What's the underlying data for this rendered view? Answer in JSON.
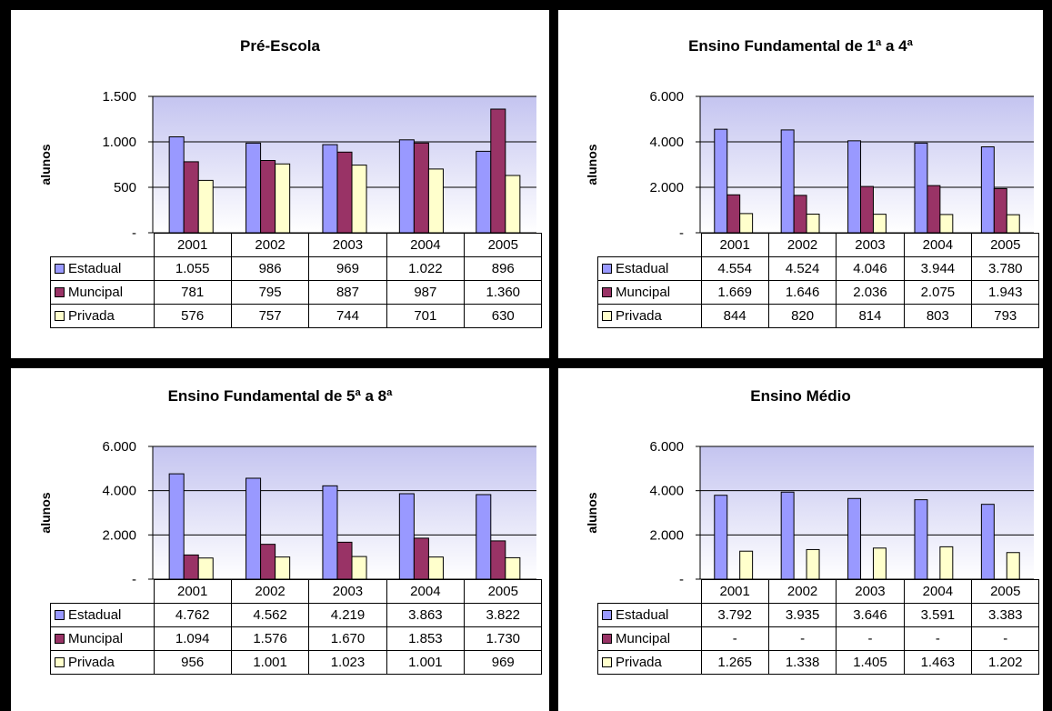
{
  "chart_data": [
    {
      "type": "bar",
      "title": "Pré-Escola",
      "ylabel": "alunos",
      "ylim": [
        0,
        1500
      ],
      "y_ticks": [
        "1.500",
        "1.000",
        "500",
        "-"
      ],
      "y_tick_values": [
        1500,
        1000,
        500,
        0
      ],
      "categories": [
        "2001",
        "2002",
        "2003",
        "2004",
        "2005"
      ],
      "series": [
        {
          "name": "Estadual",
          "values": [
            1055,
            986,
            969,
            1022,
            896
          ],
          "labels": [
            "1.055",
            "986",
            "969",
            "1.022",
            "896"
          ],
          "color": "#9999ff"
        },
        {
          "name": "Muncipal",
          "values": [
            781,
            795,
            887,
            987,
            1360
          ],
          "labels": [
            "781",
            "795",
            "887",
            "987",
            "1.360"
          ],
          "color": "#993366"
        },
        {
          "name": "Privada",
          "values": [
            576,
            757,
            744,
            701,
            630
          ],
          "labels": [
            "576",
            "757",
            "744",
            "701",
            "630"
          ],
          "color": "#ffffcc"
        }
      ]
    },
    {
      "type": "bar",
      "title": "Ensino Fundamental de 1ª a 4ª",
      "ylabel": "alunos",
      "ylim": [
        0,
        6000
      ],
      "y_ticks": [
        "6.000",
        "4.000",
        "2.000",
        "-"
      ],
      "y_tick_values": [
        6000,
        4000,
        2000,
        0
      ],
      "categories": [
        "2001",
        "2002",
        "2003",
        "2004",
        "2005"
      ],
      "series": [
        {
          "name": "Estadual",
          "values": [
            4554,
            4524,
            4046,
            3944,
            3780
          ],
          "labels": [
            "4.554",
            "4.524",
            "4.046",
            "3.944",
            "3.780"
          ],
          "color": "#9999ff"
        },
        {
          "name": "Muncipal",
          "values": [
            1669,
            1646,
            2036,
            2075,
            1943
          ],
          "labels": [
            "1.669",
            "1.646",
            "2.036",
            "2.075",
            "1.943"
          ],
          "color": "#993366"
        },
        {
          "name": "Privada",
          "values": [
            844,
            820,
            814,
            803,
            793
          ],
          "labels": [
            "844",
            "820",
            "814",
            "803",
            "793"
          ],
          "color": "#ffffcc"
        }
      ]
    },
    {
      "type": "bar",
      "title": "Ensino Fundamental de 5ª a 8ª",
      "ylabel": "alunos",
      "ylim": [
        0,
        6000
      ],
      "y_ticks": [
        "6.000",
        "4.000",
        "2.000",
        "-"
      ],
      "y_tick_values": [
        6000,
        4000,
        2000,
        0
      ],
      "categories": [
        "2001",
        "2002",
        "2003",
        "2004",
        "2005"
      ],
      "series": [
        {
          "name": "Estadual",
          "values": [
            4762,
            4562,
            4219,
            3863,
            3822
          ],
          "labels": [
            "4.762",
            "4.562",
            "4.219",
            "3.863",
            "3.822"
          ],
          "color": "#9999ff"
        },
        {
          "name": "Muncipal",
          "values": [
            1094,
            1576,
            1670,
            1853,
            1730
          ],
          "labels": [
            "1.094",
            "1.576",
            "1.670",
            "1.853",
            "1.730"
          ],
          "color": "#993366"
        },
        {
          "name": "Privada",
          "values": [
            956,
            1001,
            1023,
            1001,
            969
          ],
          "labels": [
            "956",
            "1.001",
            "1.023",
            "1.001",
            "969"
          ],
          "color": "#ffffcc"
        }
      ]
    },
    {
      "type": "bar",
      "title": "Ensino Médio",
      "ylabel": "alunos",
      "ylim": [
        0,
        6000
      ],
      "y_ticks": [
        "6.000",
        "4.000",
        "2.000",
        "-"
      ],
      "y_tick_values": [
        6000,
        4000,
        2000,
        0
      ],
      "categories": [
        "2001",
        "2002",
        "2003",
        "2004",
        "2005"
      ],
      "series": [
        {
          "name": "Estadual",
          "values": [
            3792,
            3935,
            3646,
            3591,
            3383
          ],
          "labels": [
            "3.792",
            "3.935",
            "3.646",
            "3.591",
            "3.383"
          ],
          "color": "#9999ff"
        },
        {
          "name": "Muncipal",
          "values": [
            null,
            null,
            null,
            null,
            null
          ],
          "labels": [
            "-",
            "-",
            "-",
            "-",
            "-"
          ],
          "color": "#993366"
        },
        {
          "name": "Privada",
          "values": [
            1265,
            1338,
            1405,
            1463,
            1202
          ],
          "labels": [
            "1.265",
            "1.338",
            "1.405",
            "1.463",
            "1.202"
          ],
          "color": "#ffffcc"
        }
      ]
    }
  ],
  "style": {
    "plot_gradient_top": "#c4c4f0",
    "plot_gradient_bottom": "#ffffff",
    "gridline_color": "#000000"
  }
}
